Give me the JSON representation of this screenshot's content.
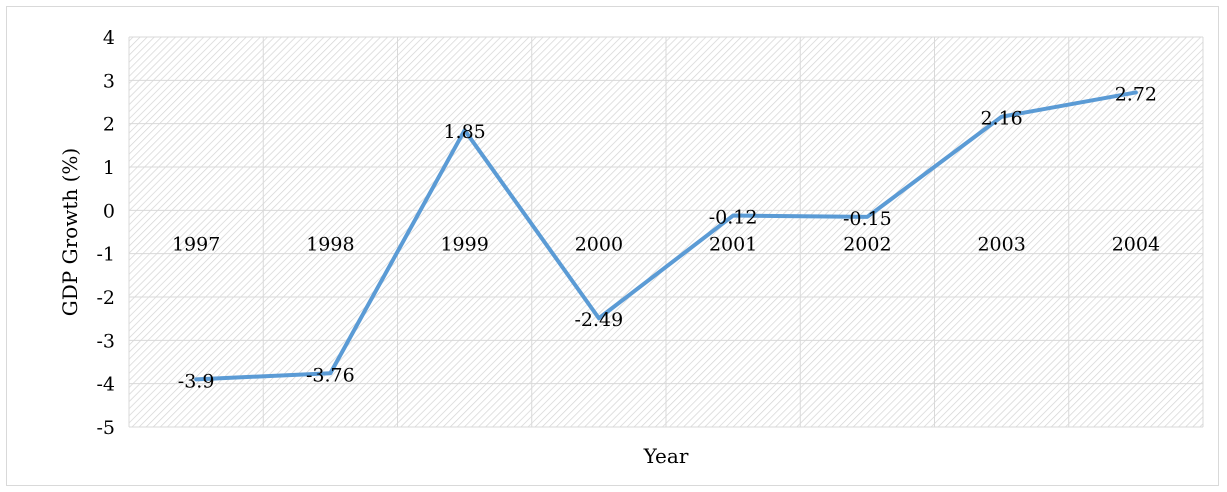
{
  "chart_data": {
    "type": "line",
    "title": "",
    "xlabel": "Year",
    "ylabel": "GDP Growth (%)",
    "categories": [
      "1997",
      "1998",
      "1999",
      "2000",
      "2001",
      "2002",
      "2003",
      "2004"
    ],
    "series": [
      {
        "values": [
          -3.9,
          -3.76,
          1.85,
          -2.49,
          -0.12,
          -0.15,
          2.16,
          2.72
        ],
        "data_labels": [
          "-3.9",
          "-3.76",
          "1.85",
          "-2.49",
          "-0.12",
          "-0.15",
          "2.16",
          "2.72"
        ],
        "color": "#5b9bd5"
      }
    ],
    "ylim": [
      -5,
      4
    ],
    "yticks": [
      "4",
      "3",
      "2",
      "1",
      "0",
      "-1",
      "-2",
      "-3",
      "-4",
      "-5"
    ],
    "grid": true,
    "legend": "none",
    "plot_background": "diagonal-hatch",
    "category_labels_position": "inside-below-zero-line"
  }
}
